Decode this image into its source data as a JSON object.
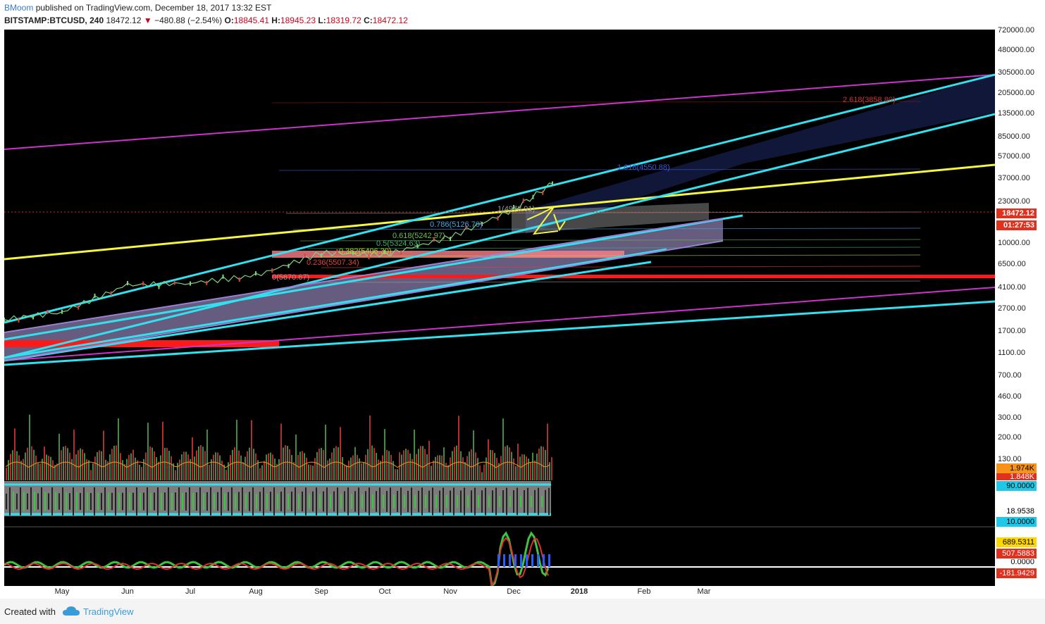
{
  "header": {
    "author": "BMoom",
    "published_text": "published on TradingView.com, December 18, 2017 13:32 EST",
    "symbol": "BITSTAMP:BTCUSD, 240",
    "last": "18472.12",
    "change": "−480.88 (−2.54%)",
    "o_label": "O:",
    "o_value": "18845.41",
    "h_label": "H:",
    "h_value": "18945.23",
    "l_label": "L:",
    "l_value": "18319.72",
    "c_label": "C:",
    "c_value": "18472.12"
  },
  "price_axis": {
    "ticks": [
      "720000.00",
      "480000.00",
      "305000.00",
      "205000.00",
      "135000.00",
      "85000.00",
      "57000.00",
      "37000.00",
      "23000.00",
      "10000.00",
      "6500.00",
      "4100.00",
      "2700.00",
      "1700.00",
      "1100.00",
      "700.00",
      "460.00",
      "300.00",
      "200.00",
      "130.00"
    ],
    "last_price_badge": "18472.12",
    "countdown_badge": "01:27:53",
    "volume_badge": "1.974K",
    "volume_badge2": "1.848K",
    "osc_upper_badge": "90.0000",
    "osc_value_badge": "18.9538",
    "osc_lower_badge": "10.0000",
    "ind_badge_1": "689.5311",
    "ind_badge_2": "507.5883",
    "ind_badge_3": "0.0000",
    "ind_badge_4": "-181.9429"
  },
  "time_axis": {
    "labels": [
      "May",
      "Jun",
      "Jul",
      "Aug",
      "Sep",
      "Oct",
      "Nov",
      "Dec",
      "2018",
      "Feb",
      "Mar"
    ]
  },
  "fib_labels": {
    "f2618": "2.618(3858.80)",
    "f1618": "1.618(4550.88)",
    "f1": "1(4978.91)",
    "f0786": "0.786(5126.70)",
    "f0618": "0.618(5242.97)",
    "f05": "0.5(5324.63)",
    "f0382": "0.382(5406.30)",
    "f0236": "0.236(5507.34)",
    "f0": "0(5670.67)"
  },
  "colors": {
    "background": "#000000",
    "cyan": "#33e0f0",
    "yellow": "#f5f542",
    "magenta": "#cc33cc",
    "red": "#ff1a1a",
    "violet": "#9b7fd4",
    "price_badge": "#e0301e",
    "volume_badge": "#f7931a",
    "osc_badge": "#1ec8e6"
  },
  "footer": {
    "created_with": "Created with",
    "brand": "TradingView"
  },
  "chart_data": {
    "type": "line",
    "title": "BITSTAMP:BTCUSD, 240",
    "xlabel": "",
    "ylabel": "",
    "scale": "log",
    "ylim": [
      700,
      720000
    ],
    "x": [
      "May",
      "Jun",
      "Jul",
      "Aug",
      "Sep",
      "Oct",
      "Nov",
      "Dec"
    ],
    "series": [
      {
        "values": [
          1400,
          2400,
          2500,
          2900,
          4600,
          4400,
          6300,
          11000
        ]
      }
    ],
    "last_value": 18472.12,
    "fib_levels": [
      {
        "label": "0",
        "value": 5670.67
      },
      {
        "label": "0.236",
        "value": 5507.34
      },
      {
        "label": "0.382",
        "value": 5406.3
      },
      {
        "label": "0.5",
        "value": 5324.63
      },
      {
        "label": "0.618",
        "value": 5242.97
      },
      {
        "label": "0.786",
        "value": 5126.7
      },
      {
        "label": "1",
        "value": 4978.91
      },
      {
        "label": "1.618",
        "value": 4550.88
      },
      {
        "label": "2.618",
        "value": 3858.8
      }
    ]
  }
}
